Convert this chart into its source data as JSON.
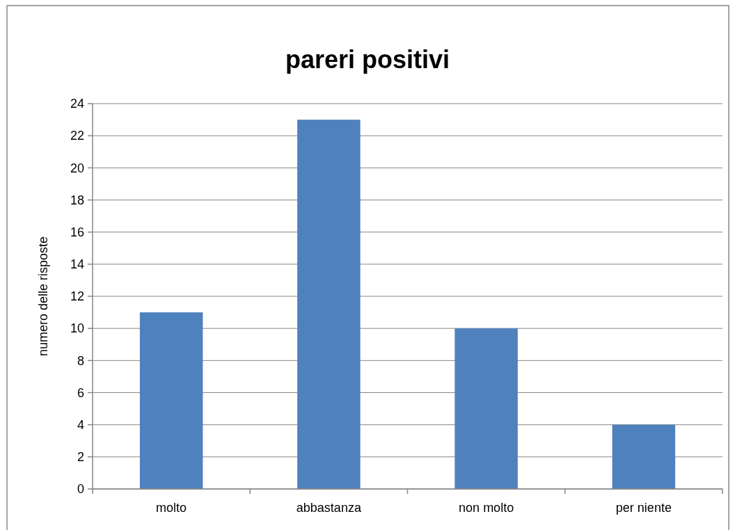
{
  "chart_data": {
    "type": "bar",
    "title": "pareri positivi",
    "ylabel": "numero delle risposte",
    "categories": [
      "molto",
      "abbastanza",
      "non molto",
      "per niente"
    ],
    "values": [
      11,
      23,
      10,
      4
    ],
    "color": "#4f81bd",
    "ylim": [
      0,
      24
    ],
    "yticks": [
      0,
      2,
      4,
      6,
      8,
      10,
      12,
      14,
      16,
      18,
      20,
      22,
      24
    ],
    "grid": "y"
  }
}
